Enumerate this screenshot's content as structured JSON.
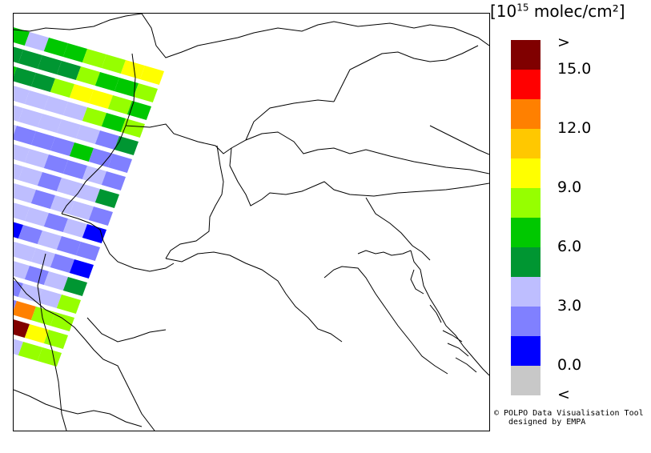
{
  "legend": {
    "title_prefix": "[10",
    "title_exp": "15",
    "title_suffix": " molec/cm²]",
    "classes": [
      {
        "color": "#800000",
        "label": ">"
      },
      {
        "color": "#ff0000",
        "label": "15.0"
      },
      {
        "color": "#ff8000",
        "label": ""
      },
      {
        "color": "#ffc800",
        "label": "12.0"
      },
      {
        "color": "#ffff00",
        "label": ""
      },
      {
        "color": "#96ff00",
        "label": "9.0"
      },
      {
        "color": "#00c800",
        "label": ""
      },
      {
        "color": "#009632",
        "label": "6.0"
      },
      {
        "color": "#bebeff",
        "label": ""
      },
      {
        "color": "#8080ff",
        "label": "3.0"
      },
      {
        "color": "#0000ff",
        "label": ""
      },
      {
        "color": "#c8c8c8",
        "label": "0.0"
      },
      {
        "label": "<"
      }
    ]
  },
  "credit": {
    "line1": "© POLPO Data Visualisation Tool",
    "line2": "designed by EMPA"
  },
  "swath": {
    "rows": [
      [
        6,
        8,
        6,
        6,
        5,
        5,
        4,
        4
      ],
      [
        7,
        7,
        7,
        7,
        5,
        6,
        6,
        5
      ],
      [
        6,
        7,
        7,
        5,
        4,
        4,
        5,
        6
      ],
      [
        8,
        8,
        8,
        8,
        8,
        5,
        6,
        5
      ],
      [
        8,
        8,
        8,
        8,
        8,
        8,
        9,
        7
      ],
      [
        9,
        8,
        9,
        9,
        9,
        6,
        9,
        9
      ],
      [
        10,
        9,
        8,
        8,
        9,
        9,
        8,
        9
      ],
      [
        8,
        8,
        8,
        8,
        9,
        8,
        8,
        7
      ],
      [
        9,
        8,
        8,
        8,
        9,
        8,
        8,
        9
      ],
      [
        8,
        10,
        9,
        8,
        8,
        9,
        8,
        10
      ],
      [
        8,
        9,
        11,
        10,
        9,
        8,
        9,
        9
      ],
      [
        10,
        8,
        9,
        8,
        8,
        8,
        9,
        10
      ],
      [
        8,
        7,
        7,
        9,
        8,
        9,
        8,
        7
      ],
      [
        9,
        8,
        6,
        9,
        9,
        8,
        8,
        5
      ],
      [
        4,
        8,
        9,
        9,
        9,
        2,
        5,
        5
      ],
      [
        8,
        7,
        7,
        8,
        5,
        0,
        4,
        5
      ],
      [
        10,
        10,
        6,
        8,
        9,
        8,
        5,
        5
      ]
    ]
  }
}
